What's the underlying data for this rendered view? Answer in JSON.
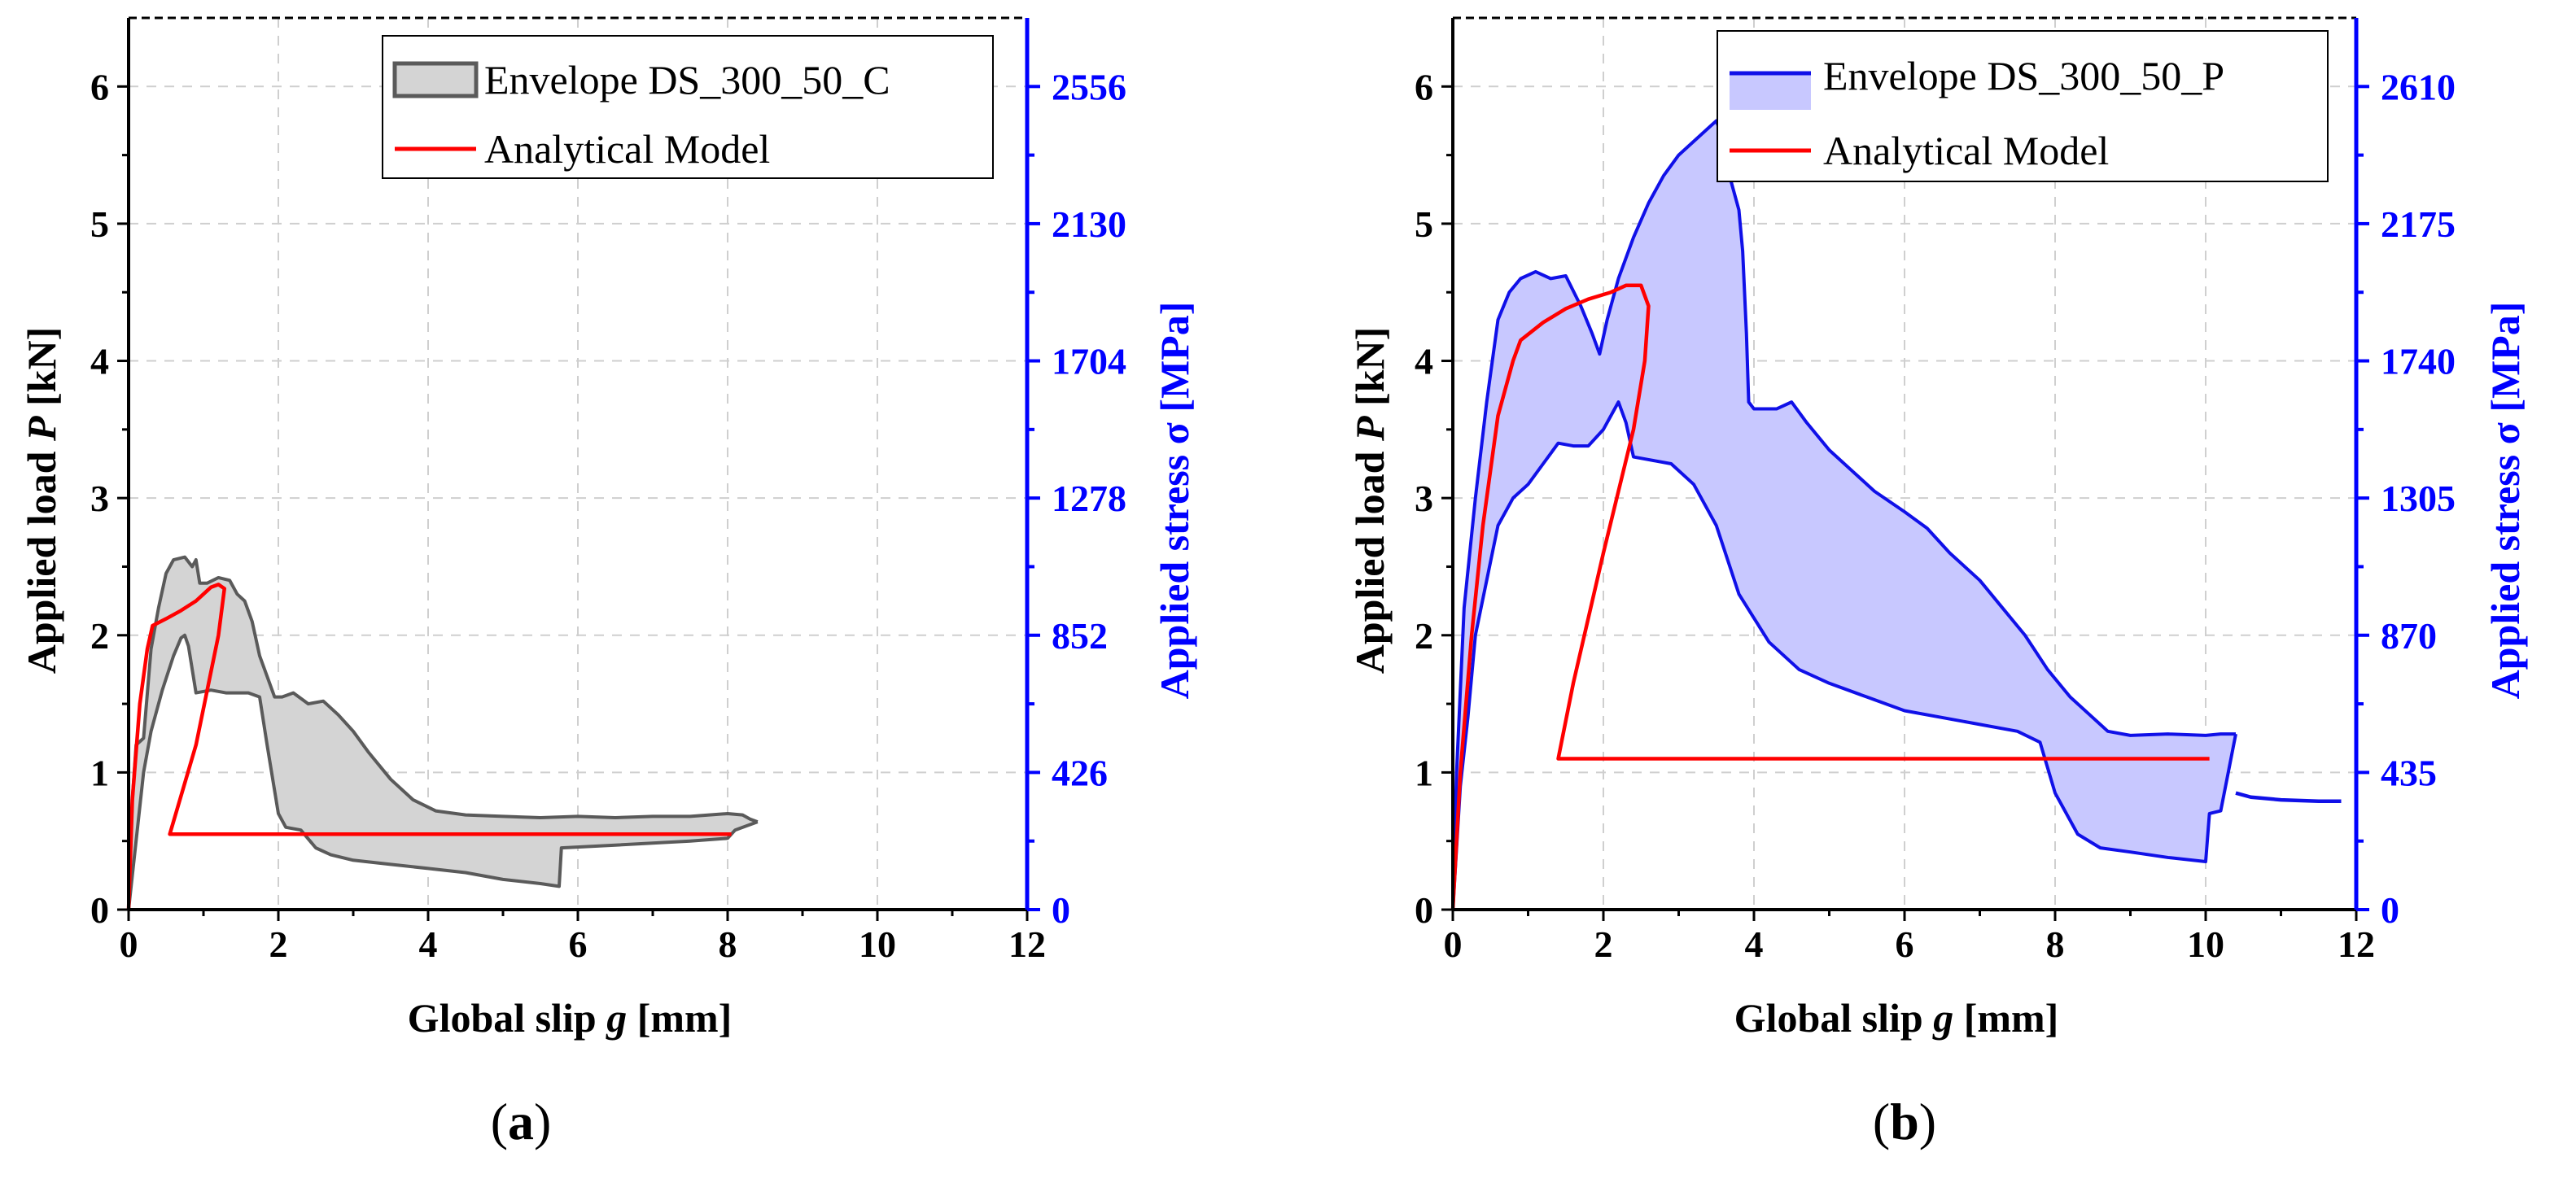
{
  "colors": {
    "axis_left": "#000000",
    "axis_right": "#0000ff",
    "model": "#ff0000"
  },
  "chart_data": [
    {
      "type": "area",
      "panel_label": {
        "open": "(",
        "letter": "a",
        "close": ")"
      },
      "xlabel": {
        "prefix": "Global slip ",
        "symbol": "g",
        "suffix": " [mm]"
      },
      "ylabel": {
        "prefix": "Applied load ",
        "symbol": "P",
        "suffix": " [kN]"
      },
      "y2label": "Applied stress σ [MPa]",
      "xlim": [
        0,
        12
      ],
      "ylim": [
        0,
        6.5
      ],
      "xticks": [
        0,
        2,
        4,
        6,
        8,
        10,
        12
      ],
      "yticks": [
        0,
        1,
        2,
        3,
        4,
        5,
        6
      ],
      "y2ticks": [
        {
          "label": "0",
          "load": 0
        },
        {
          "label": "426",
          "load": 1
        },
        {
          "label": "852",
          "load": 2
        },
        {
          "label": "1278",
          "load": 3
        },
        {
          "label": "1704",
          "load": 4
        },
        {
          "label": "2130",
          "load": 5
        },
        {
          "label": "2556",
          "load": 6
        }
      ],
      "grid": true,
      "legend": {
        "placement": "top-right"
      },
      "series": [
        {
          "name": "Envelope DS_300_50_C",
          "kind": "envelope",
          "line_color": "#5a5a5a",
          "fill_color": "#d4d4d4",
          "fill_opacity": 1,
          "upper": [
            [
              0,
              0
            ],
            [
              0.05,
              0.8
            ],
            [
              0.1,
              1.2
            ],
            [
              0.2,
              1.25
            ],
            [
              0.3,
              1.9
            ],
            [
              0.4,
              2.2
            ],
            [
              0.5,
              2.45
            ],
            [
              0.6,
              2.55
            ],
            [
              0.75,
              2.57
            ],
            [
              0.85,
              2.5
            ],
            [
              0.9,
              2.55
            ],
            [
              0.95,
              2.38
            ],
            [
              1.05,
              2.38
            ],
            [
              1.2,
              2.42
            ],
            [
              1.35,
              2.4
            ],
            [
              1.45,
              2.3
            ],
            [
              1.55,
              2.25
            ],
            [
              1.65,
              2.1
            ],
            [
              1.75,
              1.85
            ],
            [
              1.85,
              1.7
            ],
            [
              1.95,
              1.55
            ],
            [
              2.05,
              1.55
            ],
            [
              2.2,
              1.58
            ],
            [
              2.4,
              1.5
            ],
            [
              2.6,
              1.52
            ],
            [
              2.8,
              1.42
            ],
            [
              3.0,
              1.3
            ],
            [
              3.2,
              1.15
            ],
            [
              3.5,
              0.95
            ],
            [
              3.8,
              0.8
            ],
            [
              4.1,
              0.72
            ],
            [
              4.5,
              0.69
            ],
            [
              5,
              0.68
            ],
            [
              5.5,
              0.67
            ],
            [
              6,
              0.68
            ],
            [
              6.5,
              0.67
            ],
            [
              7,
              0.68
            ],
            [
              7.5,
              0.68
            ],
            [
              8,
              0.7
            ],
            [
              8.2,
              0.69
            ],
            [
              8.3,
              0.66
            ],
            [
              8.4,
              0.64
            ]
          ],
          "lower": [
            [
              0,
              0
            ],
            [
              0.1,
              0.5
            ],
            [
              0.2,
              1.0
            ],
            [
              0.3,
              1.3
            ],
            [
              0.45,
              1.6
            ],
            [
              0.6,
              1.85
            ],
            [
              0.7,
              1.98
            ],
            [
              0.75,
              2.0
            ],
            [
              0.8,
              1.92
            ],
            [
              0.9,
              1.58
            ],
            [
              1.1,
              1.6
            ],
            [
              1.3,
              1.58
            ],
            [
              1.6,
              1.58
            ],
            [
              1.75,
              1.55
            ],
            [
              1.85,
              1.2
            ],
            [
              2.0,
              0.7
            ],
            [
              2.1,
              0.6
            ],
            [
              2.3,
              0.58
            ],
            [
              2.5,
              0.45
            ],
            [
              2.7,
              0.4
            ],
            [
              3,
              0.36
            ],
            [
              3.5,
              0.33
            ],
            [
              4,
              0.3
            ],
            [
              4.5,
              0.27
            ],
            [
              5,
              0.22
            ],
            [
              5.5,
              0.19
            ],
            [
              5.75,
              0.17
            ],
            [
              5.78,
              0.45
            ],
            [
              6.5,
              0.47
            ],
            [
              7.5,
              0.5
            ],
            [
              8.0,
              0.52
            ],
            [
              8.1,
              0.58
            ],
            [
              8.3,
              0.62
            ],
            [
              8.4,
              0.64
            ]
          ]
        },
        {
          "name": "Analytical Model",
          "kind": "line",
          "color": "#ff0000",
          "points": [
            [
              0,
              0
            ],
            [
              0.05,
              0.8
            ],
            [
              0.15,
              1.5
            ],
            [
              0.25,
              1.9
            ],
            [
              0.32,
              2.07
            ],
            [
              0.5,
              2.12
            ],
            [
              0.7,
              2.18
            ],
            [
              0.9,
              2.25
            ],
            [
              1.0,
              2.3
            ],
            [
              1.1,
              2.35
            ],
            [
              1.2,
              2.37
            ],
            [
              1.28,
              2.34
            ],
            [
              1.2,
              2.0
            ],
            [
              0.9,
              1.2
            ],
            [
              0.55,
              0.55
            ],
            [
              8.05,
              0.55
            ]
          ]
        }
      ]
    },
    {
      "type": "area",
      "panel_label": {
        "open": "(",
        "letter": "b",
        "close": ")"
      },
      "xlabel": {
        "prefix": "Global slip ",
        "symbol": "g",
        "suffix": " [mm]"
      },
      "ylabel": {
        "prefix": "Applied load ",
        "symbol": "P",
        "suffix": " [kN]"
      },
      "y2label": "Applied stress σ [MPa]",
      "xlim": [
        0,
        12
      ],
      "ylim": [
        0,
        6.5
      ],
      "xticks": [
        0,
        2,
        4,
        6,
        8,
        10,
        12
      ],
      "yticks": [
        0,
        1,
        2,
        3,
        4,
        5,
        6
      ],
      "y2ticks": [
        {
          "label": "0",
          "load": 0
        },
        {
          "label": "435",
          "load": 1
        },
        {
          "label": "870",
          "load": 2
        },
        {
          "label": "1305",
          "load": 3
        },
        {
          "label": "1740",
          "load": 4
        },
        {
          "label": "2175",
          "load": 5
        },
        {
          "label": "2610",
          "load": 6
        }
      ],
      "grid": true,
      "legend": {
        "placement": "top-right"
      },
      "series": [
        {
          "name": "Envelope DS_300_50_P",
          "kind": "envelope",
          "line_color": "#1010e8",
          "fill_color": "#c8c8ff",
          "fill_opacity": 1,
          "upper": [
            [
              0,
              0
            ],
            [
              0.05,
              1.0
            ],
            [
              0.15,
              2.2
            ],
            [
              0.3,
              3.0
            ],
            [
              0.45,
              3.7
            ],
            [
              0.6,
              4.3
            ],
            [
              0.75,
              4.5
            ],
            [
              0.9,
              4.6
            ],
            [
              1.1,
              4.65
            ],
            [
              1.3,
              4.6
            ],
            [
              1.5,
              4.62
            ],
            [
              1.7,
              4.4
            ],
            [
              1.85,
              4.2
            ],
            [
              1.95,
              4.05
            ],
            [
              2.05,
              4.3
            ],
            [
              2.2,
              4.6
            ],
            [
              2.4,
              4.9
            ],
            [
              2.6,
              5.15
            ],
            [
              2.8,
              5.35
            ],
            [
              3.0,
              5.5
            ],
            [
              3.2,
              5.6
            ],
            [
              3.4,
              5.7
            ],
            [
              3.5,
              5.75
            ],
            [
              3.6,
              5.6
            ],
            [
              3.7,
              5.3
            ],
            [
              3.8,
              5.1
            ],
            [
              3.85,
              4.8
            ],
            [
              3.9,
              4.2
            ],
            [
              3.93,
              3.7
            ],
            [
              4,
              3.65
            ],
            [
              4.3,
              3.65
            ],
            [
              4.5,
              3.7
            ],
            [
              4.7,
              3.55
            ],
            [
              5,
              3.35
            ],
            [
              5.3,
              3.2
            ],
            [
              5.6,
              3.05
            ],
            [
              6,
              2.9
            ],
            [
              6.3,
              2.78
            ],
            [
              6.6,
              2.6
            ],
            [
              7,
              2.4
            ],
            [
              7.3,
              2.2
            ],
            [
              7.6,
              2.0
            ],
            [
              7.9,
              1.75
            ],
            [
              8.2,
              1.55
            ],
            [
              8.5,
              1.4
            ],
            [
              8.7,
              1.3
            ],
            [
              9,
              1.27
            ],
            [
              9.5,
              1.28
            ],
            [
              10,
              1.27
            ],
            [
              10.2,
              1.28
            ],
            [
              10.4,
              1.28
            ]
          ],
          "lower": [
            [
              0,
              0
            ],
            [
              0.1,
              0.9
            ],
            [
              0.2,
              1.4
            ],
            [
              0.3,
              2.0
            ],
            [
              0.45,
              2.4
            ],
            [
              0.6,
              2.8
            ],
            [
              0.8,
              3.0
            ],
            [
              1.0,
              3.1
            ],
            [
              1.2,
              3.25
            ],
            [
              1.4,
              3.4
            ],
            [
              1.6,
              3.38
            ],
            [
              1.8,
              3.38
            ],
            [
              2.0,
              3.5
            ],
            [
              2.2,
              3.7
            ],
            [
              2.3,
              3.55
            ],
            [
              2.4,
              3.3
            ],
            [
              2.6,
              3.28
            ],
            [
              2.9,
              3.25
            ],
            [
              3.2,
              3.1
            ],
            [
              3.5,
              2.8
            ],
            [
              3.8,
              2.3
            ],
            [
              4.2,
              1.95
            ],
            [
              4.6,
              1.75
            ],
            [
              5,
              1.65
            ],
            [
              5.5,
              1.55
            ],
            [
              6,
              1.45
            ],
            [
              6.5,
              1.4
            ],
            [
              7,
              1.35
            ],
            [
              7.5,
              1.3
            ],
            [
              7.8,
              1.22
            ],
            [
              8,
              0.85
            ],
            [
              8.3,
              0.55
            ],
            [
              8.6,
              0.45
            ],
            [
              9,
              0.42
            ],
            [
              9.5,
              0.38
            ],
            [
              10,
              0.35
            ],
            [
              10.05,
              0.7
            ],
            [
              10.2,
              0.72
            ],
            [
              10.4,
              1.28
            ]
          ]
        },
        {
          "name": "",
          "kind": "line",
          "color": "#1010e8",
          "points": [
            [
              10.4,
              0.85
            ],
            [
              10.6,
              0.82
            ],
            [
              11,
              0.8
            ],
            [
              11.5,
              0.79
            ],
            [
              11.8,
              0.79
            ]
          ]
        },
        {
          "name": "Analytical Model",
          "kind": "line",
          "color": "#ff0000",
          "points": [
            [
              0,
              0
            ],
            [
              0.1,
              1.0
            ],
            [
              0.25,
              2.0
            ],
            [
              0.4,
              2.8
            ],
            [
              0.6,
              3.6
            ],
            [
              0.8,
              4.0
            ],
            [
              0.9,
              4.15
            ],
            [
              1.2,
              4.28
            ],
            [
              1.5,
              4.38
            ],
            [
              1.8,
              4.45
            ],
            [
              2.1,
              4.5
            ],
            [
              2.3,
              4.55
            ],
            [
              2.5,
              4.55
            ],
            [
              2.6,
              4.4
            ],
            [
              2.55,
              4.0
            ],
            [
              2.4,
              3.5
            ],
            [
              2.0,
              2.6
            ],
            [
              1.6,
              1.65
            ],
            [
              1.4,
              1.1
            ],
            [
              10.05,
              1.1
            ]
          ]
        }
      ]
    }
  ]
}
